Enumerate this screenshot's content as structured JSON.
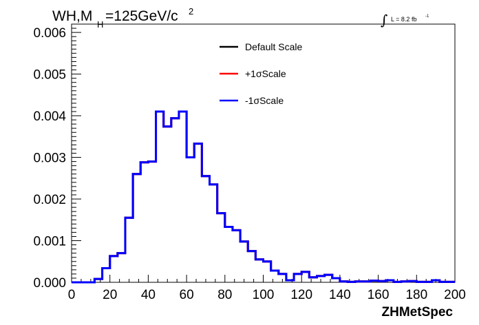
{
  "chart_data": {
    "type": "line",
    "style": "step-histogram",
    "title": {
      "prefix": "WH,M",
      "subscript": "H",
      "value": "=125GeV/c",
      "superscript": "2"
    },
    "luminosity": {
      "symbol": "∫",
      "text": "L = 8.2 fb",
      "superscript": "-1"
    },
    "xlabel": "ZHMetSpec",
    "ylabel": "",
    "xlim": [
      0,
      200
    ],
    "ylim": [
      0,
      0.0062
    ],
    "x_ticks": [
      "0",
      "20",
      "40",
      "60",
      "80",
      "100",
      "120",
      "140",
      "160",
      "180",
      "200"
    ],
    "y_ticks": [
      "0.000",
      "0.001",
      "0.002",
      "0.003",
      "0.004",
      "0.005",
      "0.006"
    ],
    "bin_width": 4,
    "bin_edges_start": 0,
    "legend_position": "top-center",
    "grid": false,
    "series": [
      {
        "name": "Default Scale",
        "color": "#000000",
        "values": [
          0,
          0,
          0,
          8e-05,
          0.00034,
          0.00063,
          0.0007,
          0.00155,
          0.0026,
          0.00288,
          0.0029,
          0.0041,
          0.00374,
          0.00394,
          0.0041,
          0.003,
          0.00333,
          0.00255,
          0.00235,
          0.00166,
          0.00133,
          0.00125,
          0.00098,
          0.00075,
          0.00055,
          0.0005,
          0.00028,
          0.0002,
          5e-05,
          0.0002,
          0.00025,
          0.00012,
          0.00015,
          0.00018,
          0.0001,
          2e-05,
          1e-05,
          2e-05,
          2e-05,
          4e-05,
          3e-05,
          5e-05,
          1e-05,
          2e-05,
          3e-05,
          1e-05,
          1e-05,
          5e-05,
          1e-05,
          1e-05
        ]
      },
      {
        "name": "+1σScale",
        "color": "#ff0000",
        "values": [
          0,
          0,
          0,
          8e-05,
          0.00034,
          0.00063,
          0.0007,
          0.00155,
          0.0026,
          0.00288,
          0.0029,
          0.0041,
          0.00374,
          0.00394,
          0.0041,
          0.003,
          0.00333,
          0.00255,
          0.00235,
          0.00166,
          0.00133,
          0.00125,
          0.00098,
          0.00075,
          0.00055,
          0.0005,
          0.00028,
          0.0002,
          5e-05,
          0.0002,
          0.00025,
          0.00012,
          0.00015,
          0.00018,
          0.0001,
          2e-05,
          1e-05,
          2e-05,
          2e-05,
          4e-05,
          3e-05,
          5e-05,
          1e-05,
          2e-05,
          3e-05,
          1e-05,
          1e-05,
          5e-05,
          1e-05,
          1e-05
        ]
      },
      {
        "name": "-1σScale",
        "color": "#0000ff",
        "values": [
          0,
          0,
          0,
          8e-05,
          0.00034,
          0.00063,
          0.0007,
          0.00155,
          0.0026,
          0.00288,
          0.0029,
          0.0041,
          0.00374,
          0.00394,
          0.0041,
          0.003,
          0.00333,
          0.00255,
          0.00235,
          0.00166,
          0.00133,
          0.00125,
          0.00098,
          0.00075,
          0.00055,
          0.0005,
          0.00028,
          0.0002,
          5e-05,
          0.0002,
          0.00025,
          0.00012,
          0.00015,
          0.00018,
          0.0001,
          2e-05,
          1e-05,
          2e-05,
          2e-05,
          4e-05,
          3e-05,
          5e-05,
          1e-05,
          2e-05,
          3e-05,
          1e-05,
          1e-05,
          5e-05,
          1e-05,
          1e-05
        ]
      }
    ]
  }
}
